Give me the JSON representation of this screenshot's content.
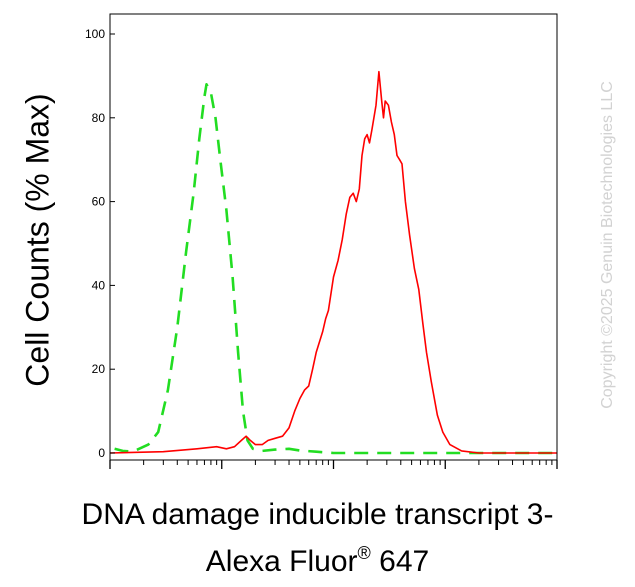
{
  "chart_data": {
    "type": "line",
    "title": "",
    "ylabel": "Cell Counts (% Max)",
    "xlabel_line1": "DNA damage inducible transcript 3-",
    "xlabel_line2_prefix": "Alexa Fluor",
    "xlabel_line2_mark": "®",
    "xlabel_line2_suffix": " 647",
    "x_scale": "log",
    "xlim": [
      10,
      100000
    ],
    "ylim": [
      0,
      105
    ],
    "yticks": [
      0,
      20,
      40,
      60,
      80,
      100
    ],
    "ytick_labels": [
      "0",
      "20",
      "40",
      "60",
      "80",
      "100"
    ],
    "grid": false,
    "series": [
      {
        "style": "dashed",
        "color": "#22dd22",
        "points": [
          [
            11,
            1
          ],
          [
            13,
            0.5
          ],
          [
            16,
            0.3
          ],
          [
            22,
            2
          ],
          [
            27,
            5
          ],
          [
            33,
            15
          ],
          [
            40,
            30
          ],
          [
            48,
            48
          ],
          [
            56,
            62
          ],
          [
            63,
            75
          ],
          [
            70,
            85
          ],
          [
            73,
            88
          ],
          [
            80,
            86
          ],
          [
            88,
            80
          ],
          [
            97,
            70
          ],
          [
            110,
            58
          ],
          [
            125,
            42
          ],
          [
            140,
            24
          ],
          [
            155,
            10
          ],
          [
            170,
            3
          ],
          [
            190,
            1
          ],
          [
            230,
            0.5
          ],
          [
            300,
            0.8
          ],
          [
            400,
            1
          ],
          [
            500,
            0.6
          ],
          [
            700,
            0.3
          ],
          [
            1000,
            0
          ],
          [
            2000,
            0
          ],
          [
            5000,
            0
          ],
          [
            20000,
            0
          ],
          [
            100000,
            0
          ]
        ]
      },
      {
        "style": "solid",
        "color": "#ff0000",
        "points": [
          [
            10,
            0
          ],
          [
            30,
            0.3
          ],
          [
            60,
            1
          ],
          [
            90,
            1.5
          ],
          [
            110,
            1
          ],
          [
            130,
            1.5
          ],
          [
            150,
            3
          ],
          [
            165,
            4
          ],
          [
            180,
            3
          ],
          [
            200,
            2
          ],
          [
            230,
            2
          ],
          [
            260,
            3
          ],
          [
            300,
            3.5
          ],
          [
            350,
            4
          ],
          [
            400,
            6
          ],
          [
            450,
            10
          ],
          [
            500,
            13
          ],
          [
            550,
            15
          ],
          [
            600,
            16
          ],
          [
            650,
            20
          ],
          [
            700,
            24
          ],
          [
            800,
            29
          ],
          [
            850,
            32
          ],
          [
            900,
            34
          ],
          [
            1000,
            42
          ],
          [
            1100,
            46
          ],
          [
            1200,
            51
          ],
          [
            1300,
            57
          ],
          [
            1400,
            61
          ],
          [
            1500,
            62
          ],
          [
            1600,
            60
          ],
          [
            1700,
            63
          ],
          [
            1800,
            71
          ],
          [
            1900,
            75
          ],
          [
            2000,
            76
          ],
          [
            2100,
            74
          ],
          [
            2200,
            77
          ],
          [
            2400,
            83
          ],
          [
            2550,
            91
          ],
          [
            2700,
            84
          ],
          [
            2800,
            80
          ],
          [
            2900,
            84
          ],
          [
            3100,
            83
          ],
          [
            3300,
            79
          ],
          [
            3500,
            76
          ],
          [
            3700,
            71
          ],
          [
            3900,
            70
          ],
          [
            4100,
            69
          ],
          [
            4400,
            60
          ],
          [
            4800,
            52
          ],
          [
            5300,
            44
          ],
          [
            5800,
            39
          ],
          [
            6300,
            31
          ],
          [
            6800,
            24
          ],
          [
            7500,
            17
          ],
          [
            8500,
            9
          ],
          [
            9500,
            5
          ],
          [
            11000,
            2
          ],
          [
            14000,
            0.5
          ],
          [
            20000,
            0
          ],
          [
            100000,
            0
          ]
        ]
      }
    ]
  },
  "watermark": "Copyright ©2025 Genuin Biotechnologies LLC"
}
